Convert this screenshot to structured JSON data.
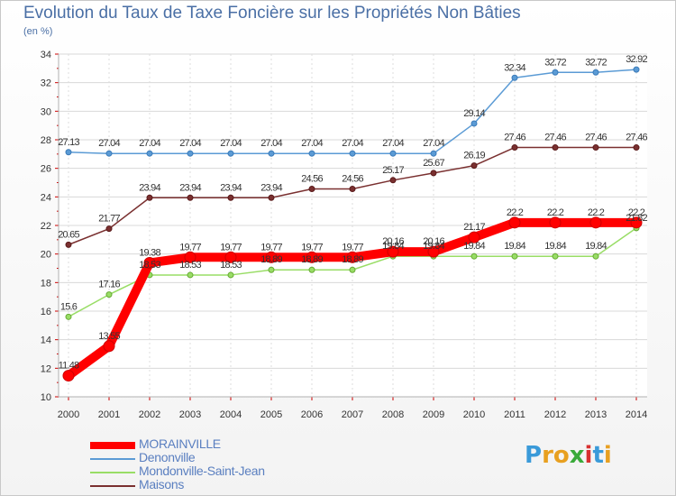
{
  "title": "Evolution du Taux de Taxe Foncière sur les Propriétés Non Bâties",
  "unit": "(en %)",
  "logo": {
    "letters": [
      "P",
      "r",
      "o",
      "x",
      "i",
      "t",
      "i"
    ],
    "colors": [
      "#3a9ad9",
      "#e8a020",
      "#e8a020",
      "#3aaa3a",
      "#d83030",
      "#3a9ad9",
      "#e8a020"
    ]
  },
  "chart_data": {
    "type": "line",
    "x": [
      "2000",
      "2001",
      "2002",
      "2003",
      "2004",
      "2005",
      "2006",
      "2007",
      "2008",
      "2009",
      "2010",
      "2011",
      "2012",
      "2013",
      "2014"
    ],
    "ylim": [
      10,
      34
    ],
    "yticks": [
      "10",
      "12",
      "14",
      "16",
      "18",
      "20",
      "22",
      "24",
      "26",
      "28",
      "30",
      "32",
      "34"
    ],
    "grid": "horizontal",
    "series": [
      {
        "name": "MORAINVILLE",
        "color": "#ff0000",
        "values": [
          11.48,
          13.55,
          19.38,
          19.77,
          19.77,
          19.77,
          19.77,
          19.77,
          20.16,
          20.16,
          21.17,
          22.2,
          22.2,
          22.2,
          22.2
        ],
        "labels": [
          "11.48",
          "13.55",
          "19.38",
          "19.77",
          "19.77",
          "19.77",
          "19.77",
          "19.77",
          "20.16",
          "20.16",
          "21.17",
          "22.2",
          "22.2",
          "22.2",
          "22.2"
        ]
      },
      {
        "name": "Denonville",
        "color": "#5b9bd5",
        "values": [
          27.13,
          27.04,
          27.04,
          27.04,
          27.04,
          27.04,
          27.04,
          27.04,
          27.04,
          27.04,
          29.14,
          32.34,
          32.72,
          32.72,
          32.92
        ],
        "labels": [
          "27.13",
          "27.04",
          "27.04",
          "27.04",
          "27.04",
          "27.04",
          "27.04",
          "27.04",
          "27.04",
          "27.04",
          "29.14",
          "32.34",
          "32.72",
          "32.72",
          "32.92"
        ]
      },
      {
        "name": "Mondonville-Saint-Jean",
        "color": "#99dd66",
        "values": [
          15.6,
          17.16,
          18.53,
          18.53,
          18.53,
          18.89,
          18.89,
          18.89,
          19.84,
          19.84,
          19.84,
          19.84,
          19.84,
          19.84,
          21.82
        ],
        "labels": [
          "15.6",
          "17.16",
          "18.53",
          "18.53",
          "18.53",
          "18.89",
          "18.89",
          "18.89",
          "19.84",
          "19.84",
          "19.84",
          "19.84",
          "19.84",
          "19.84",
          "21.82"
        ]
      },
      {
        "name": "Maisons",
        "color": "#7a3030",
        "values": [
          20.65,
          21.77,
          23.94,
          23.94,
          23.94,
          23.94,
          24.56,
          24.56,
          25.17,
          25.67,
          26.19,
          27.46,
          27.46,
          27.46,
          27.46
        ],
        "labels": [
          "20.65",
          "21.77",
          "23.94",
          "23.94",
          "23.94",
          "23.94",
          "24.56",
          "24.56",
          "25.17",
          "25.67",
          "26.19",
          "27.46",
          "27.46",
          "27.46",
          "27.46"
        ]
      }
    ]
  }
}
